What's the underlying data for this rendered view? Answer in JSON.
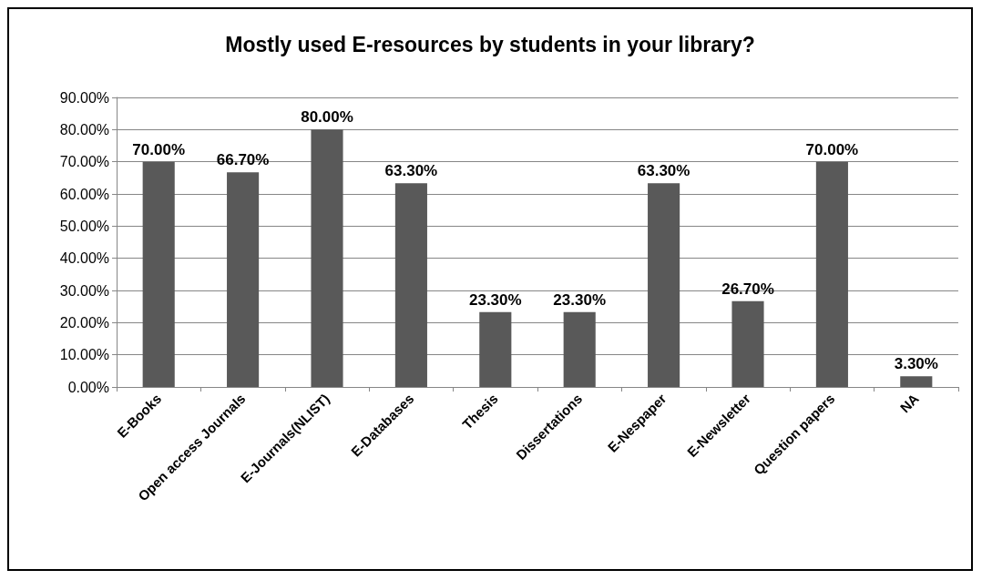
{
  "chart_data": {
    "type": "bar",
    "title": "Mostly used E-resources by students in your library?",
    "categories": [
      "E-Books",
      "Open access Journals",
      "E-Journals(NLIST)",
      "E-Databases",
      "Thesis",
      "Dissertations",
      "E-Nespaper",
      "E-Newsletter",
      "Question papers",
      "NA"
    ],
    "values": [
      70,
      66.7,
      80,
      63.3,
      23.3,
      23.3,
      63.3,
      26.7,
      70,
      3.3
    ],
    "value_labels": [
      "70.00%",
      "66.70%",
      "80.00%",
      "63.30%",
      "23.30%",
      "23.30%",
      "63.30%",
      "26.70%",
      "70.00%",
      "3.30%"
    ],
    "color": "#595959",
    "ylim": [
      0,
      90
    ],
    "yticks": [
      {
        "value": 0,
        "label": "0.00%"
      },
      {
        "value": 10,
        "label": "10.00%"
      },
      {
        "value": 20,
        "label": "20.00%"
      },
      {
        "value": 30,
        "label": "30.00%"
      },
      {
        "value": 40,
        "label": "40.00%"
      },
      {
        "value": 50,
        "label": "50.00%"
      },
      {
        "value": 60,
        "label": "60.00%"
      },
      {
        "value": 70,
        "label": "70.00%"
      },
      {
        "value": 80,
        "label": "80.00%"
      },
      {
        "value": 90,
        "label": "90.00%"
      }
    ],
    "grid": true
  }
}
